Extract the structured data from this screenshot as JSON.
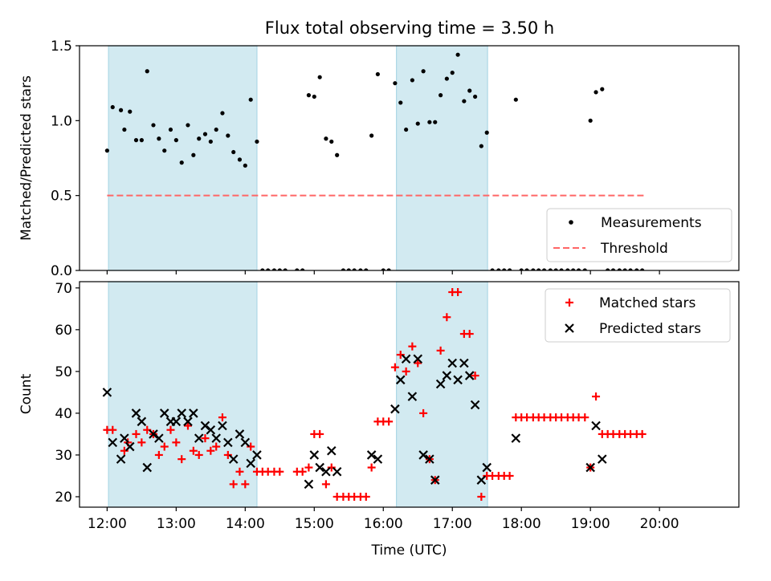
{
  "figure": {
    "title": "Flux total observing time = 3.50 h"
  },
  "chart_data": [
    {
      "type": "scatter",
      "ylabel": "Matched/Predicted stars",
      "xlabel": "",
      "x_unit": "hours UTC",
      "xlim": [
        11.6,
        21.15
      ],
      "ylim": [
        0,
        1.5
      ],
      "yticks": [
        0.0,
        0.5,
        1.0,
        1.5
      ],
      "ytick_labels": [
        "0.0",
        "0.5",
        "1.0",
        "1.5"
      ],
      "shaded_intervals": [
        [
          12.02,
          14.17
        ],
        [
          16.19,
          17.51
        ]
      ],
      "shade_color": "#add8e6",
      "threshold": {
        "name": "Threshold",
        "value": 0.5,
        "x_range": [
          12.0,
          19.8
        ],
        "color": "#ff6666"
      },
      "legend": {
        "placement": "lower right",
        "entries": [
          {
            "label": "Measurements",
            "marker": "dot",
            "color": "#000000"
          },
          {
            "label": "Threshold",
            "marker": "dashed-line",
            "color": "#ff6666"
          }
        ]
      },
      "series": [
        {
          "name": "Measurements",
          "color": "#000000",
          "points": [
            [
              12.0,
              0.8
            ],
            [
              12.08,
              1.09
            ],
            [
              12.2,
              1.07
            ],
            [
              12.25,
              0.94
            ],
            [
              12.33,
              1.06
            ],
            [
              12.42,
              0.87
            ],
            [
              12.5,
              0.87
            ],
            [
              12.58,
              1.33
            ],
            [
              12.67,
              0.97
            ],
            [
              12.75,
              0.88
            ],
            [
              12.83,
              0.8
            ],
            [
              12.92,
              0.94
            ],
            [
              13.0,
              0.87
            ],
            [
              13.08,
              0.72
            ],
            [
              13.17,
              0.97
            ],
            [
              13.25,
              0.77
            ],
            [
              13.33,
              0.88
            ],
            [
              13.42,
              0.91
            ],
            [
              13.5,
              0.86
            ],
            [
              13.58,
              0.94
            ],
            [
              13.67,
              1.05
            ],
            [
              13.75,
              0.9
            ],
            [
              13.83,
              0.79
            ],
            [
              13.92,
              0.74
            ],
            [
              14.0,
              0.7
            ],
            [
              14.08,
              1.14
            ],
            [
              14.17,
              0.86
            ],
            [
              14.25,
              0.0
            ],
            [
              14.33,
              0.0
            ],
            [
              14.42,
              0.0
            ],
            [
              14.5,
              0.0
            ],
            [
              14.58,
              0.0
            ],
            [
              14.75,
              0.0
            ],
            [
              14.83,
              0.0
            ],
            [
              14.92,
              1.17
            ],
            [
              15.0,
              1.16
            ],
            [
              15.08,
              1.29
            ],
            [
              15.17,
              0.88
            ],
            [
              15.25,
              0.86
            ],
            [
              15.33,
              0.77
            ],
            [
              15.42,
              0.0
            ],
            [
              15.5,
              0.0
            ],
            [
              15.58,
              0.0
            ],
            [
              15.67,
              0.0
            ],
            [
              15.75,
              0.0
            ],
            [
              15.83,
              0.9
            ],
            [
              15.92,
              1.31
            ],
            [
              16.0,
              0.0
            ],
            [
              16.08,
              0.0
            ],
            [
              16.17,
              1.25
            ],
            [
              16.25,
              1.12
            ],
            [
              16.33,
              0.94
            ],
            [
              16.42,
              1.27
            ],
            [
              16.5,
              0.98
            ],
            [
              16.58,
              1.33
            ],
            [
              16.67,
              0.99
            ],
            [
              16.75,
              0.99
            ],
            [
              16.83,
              1.17
            ],
            [
              16.92,
              1.28
            ],
            [
              17.0,
              1.32
            ],
            [
              17.08,
              1.44
            ],
            [
              17.17,
              1.13
            ],
            [
              17.25,
              1.2
            ],
            [
              17.33,
              1.16
            ],
            [
              17.42,
              0.83
            ],
            [
              17.5,
              0.92
            ],
            [
              17.58,
              0.0
            ],
            [
              17.67,
              0.0
            ],
            [
              17.75,
              0.0
            ],
            [
              17.83,
              0.0
            ],
            [
              17.92,
              1.14
            ],
            [
              18.0,
              0.0
            ],
            [
              18.08,
              0.0
            ],
            [
              18.17,
              0.0
            ],
            [
              18.25,
              0.0
            ],
            [
              18.33,
              0.0
            ],
            [
              18.42,
              0.0
            ],
            [
              18.5,
              0.0
            ],
            [
              18.58,
              0.0
            ],
            [
              18.67,
              0.0
            ],
            [
              18.75,
              0.0
            ],
            [
              18.83,
              0.0
            ],
            [
              18.92,
              0.0
            ],
            [
              19.0,
              1.0
            ],
            [
              19.08,
              1.19
            ],
            [
              19.17,
              1.21
            ],
            [
              19.25,
              0.0
            ],
            [
              19.33,
              0.0
            ],
            [
              19.42,
              0.0
            ],
            [
              19.5,
              0.0
            ],
            [
              19.58,
              0.0
            ],
            [
              19.67,
              0.0
            ],
            [
              19.75,
              0.0
            ]
          ]
        }
      ]
    },
    {
      "type": "scatter",
      "ylabel": "Count",
      "xlabel": "Time (UTC)",
      "x_unit": "hours UTC",
      "xlim": [
        11.6,
        21.15
      ],
      "ylim": [
        17.5,
        71.5
      ],
      "yticks": [
        20,
        30,
        40,
        50,
        60,
        70
      ],
      "ytick_labels": [
        "20",
        "30",
        "40",
        "50",
        "60",
        "70"
      ],
      "xticks": [
        12,
        13,
        14,
        15,
        16,
        17,
        18,
        19,
        20
      ],
      "xtick_labels": [
        "12:00",
        "13:00",
        "14:00",
        "15:00",
        "16:00",
        "17:00",
        "18:00",
        "19:00",
        "20:00"
      ],
      "shaded_intervals": [
        [
          12.02,
          14.17
        ],
        [
          16.19,
          17.51
        ]
      ],
      "shade_color": "#add8e6",
      "legend": {
        "placement": "upper right",
        "entries": [
          {
            "label": "Matched stars",
            "marker": "plus",
            "color": "#ff0000"
          },
          {
            "label": "Predicted stars",
            "marker": "x",
            "color": "#000000"
          }
        ]
      },
      "series": [
        {
          "name": "Matched stars",
          "marker": "plus",
          "color": "#ff0000",
          "points": [
            [
              12.0,
              36
            ],
            [
              12.08,
              36
            ],
            [
              12.25,
              31
            ],
            [
              12.3,
              33
            ],
            [
              12.42,
              35
            ],
            [
              12.5,
              33
            ],
            [
              12.58,
              36
            ],
            [
              12.67,
              35
            ],
            [
              12.75,
              30
            ],
            [
              12.83,
              32
            ],
            [
              12.92,
              36
            ],
            [
              13.0,
              33
            ],
            [
              13.08,
              29
            ],
            [
              13.17,
              37
            ],
            [
              13.25,
              31
            ],
            [
              13.33,
              30
            ],
            [
              13.42,
              34
            ],
            [
              13.5,
              31
            ],
            [
              13.58,
              32
            ],
            [
              13.67,
              39
            ],
            [
              13.75,
              30
            ],
            [
              13.83,
              23
            ],
            [
              13.92,
              26
            ],
            [
              14.0,
              23
            ],
            [
              14.08,
              32
            ],
            [
              14.17,
              26
            ],
            [
              14.25,
              26
            ],
            [
              14.33,
              26
            ],
            [
              14.42,
              26
            ],
            [
              14.5,
              26
            ],
            [
              14.75,
              26
            ],
            [
              14.83,
              26
            ],
            [
              14.92,
              27
            ],
            [
              15.0,
              35
            ],
            [
              15.08,
              35
            ],
            [
              15.17,
              23
            ],
            [
              15.25,
              27
            ],
            [
              15.33,
              20
            ],
            [
              15.42,
              20
            ],
            [
              15.5,
              20
            ],
            [
              15.58,
              20
            ],
            [
              15.67,
              20
            ],
            [
              15.75,
              20
            ],
            [
              15.83,
              27
            ],
            [
              15.92,
              38
            ],
            [
              16.0,
              38
            ],
            [
              16.08,
              38
            ],
            [
              16.17,
              51
            ],
            [
              16.25,
              54
            ],
            [
              16.33,
              50
            ],
            [
              16.42,
              56
            ],
            [
              16.5,
              52
            ],
            [
              16.58,
              40
            ],
            [
              16.67,
              29
            ],
            [
              16.75,
              24
            ],
            [
              16.83,
              55
            ],
            [
              16.92,
              63
            ],
            [
              17.0,
              69
            ],
            [
              17.08,
              69
            ],
            [
              17.17,
              59
            ],
            [
              17.25,
              59
            ],
            [
              17.33,
              49
            ],
            [
              17.42,
              20
            ],
            [
              17.5,
              25
            ],
            [
              17.58,
              25
            ],
            [
              17.67,
              25
            ],
            [
              17.75,
              25
            ],
            [
              17.83,
              25
            ],
            [
              17.92,
              39
            ],
            [
              18.0,
              39
            ],
            [
              18.08,
              39
            ],
            [
              18.17,
              39
            ],
            [
              18.25,
              39
            ],
            [
              18.33,
              39
            ],
            [
              18.42,
              39
            ],
            [
              18.5,
              39
            ],
            [
              18.58,
              39
            ],
            [
              18.67,
              39
            ],
            [
              18.75,
              39
            ],
            [
              18.83,
              39
            ],
            [
              18.92,
              39
            ],
            [
              19.0,
              27
            ],
            [
              19.08,
              44
            ],
            [
              19.17,
              35
            ],
            [
              19.25,
              35
            ],
            [
              19.33,
              35
            ],
            [
              19.42,
              35
            ],
            [
              19.5,
              35
            ],
            [
              19.58,
              35
            ],
            [
              19.67,
              35
            ],
            [
              19.75,
              35
            ]
          ]
        },
        {
          "name": "Predicted stars",
          "marker": "x",
          "color": "#000000",
          "points": [
            [
              12.0,
              45
            ],
            [
              12.08,
              33
            ],
            [
              12.2,
              29
            ],
            [
              12.25,
              34
            ],
            [
              12.33,
              32
            ],
            [
              12.42,
              40
            ],
            [
              12.5,
              38
            ],
            [
              12.58,
              27
            ],
            [
              12.67,
              35
            ],
            [
              12.75,
              34
            ],
            [
              12.83,
              40
            ],
            [
              12.92,
              38
            ],
            [
              13.0,
              38
            ],
            [
              13.08,
              40
            ],
            [
              13.17,
              38
            ],
            [
              13.25,
              40
            ],
            [
              13.33,
              34
            ],
            [
              13.42,
              37
            ],
            [
              13.5,
              36
            ],
            [
              13.58,
              34
            ],
            [
              13.67,
              37
            ],
            [
              13.75,
              33
            ],
            [
              13.83,
              29
            ],
            [
              13.92,
              35
            ],
            [
              14.0,
              33
            ],
            [
              14.08,
              28
            ],
            [
              14.17,
              30
            ],
            [
              14.92,
              23
            ],
            [
              15.0,
              30
            ],
            [
              15.08,
              27
            ],
            [
              15.17,
              26
            ],
            [
              15.25,
              31
            ],
            [
              15.33,
              26
            ],
            [
              15.83,
              30
            ],
            [
              15.92,
              29
            ],
            [
              16.17,
              41
            ],
            [
              16.25,
              48
            ],
            [
              16.33,
              53
            ],
            [
              16.42,
              44
            ],
            [
              16.5,
              53
            ],
            [
              16.58,
              30
            ],
            [
              16.67,
              29
            ],
            [
              16.75,
              24
            ],
            [
              16.83,
              47
            ],
            [
              16.92,
              49
            ],
            [
              17.0,
              52
            ],
            [
              17.08,
              48
            ],
            [
              17.17,
              52
            ],
            [
              17.25,
              49
            ],
            [
              17.33,
              42
            ],
            [
              17.42,
              24
            ],
            [
              17.5,
              27
            ],
            [
              17.92,
              34
            ],
            [
              19.0,
              27
            ],
            [
              19.08,
              37
            ],
            [
              19.17,
              29
            ]
          ]
        }
      ]
    }
  ]
}
